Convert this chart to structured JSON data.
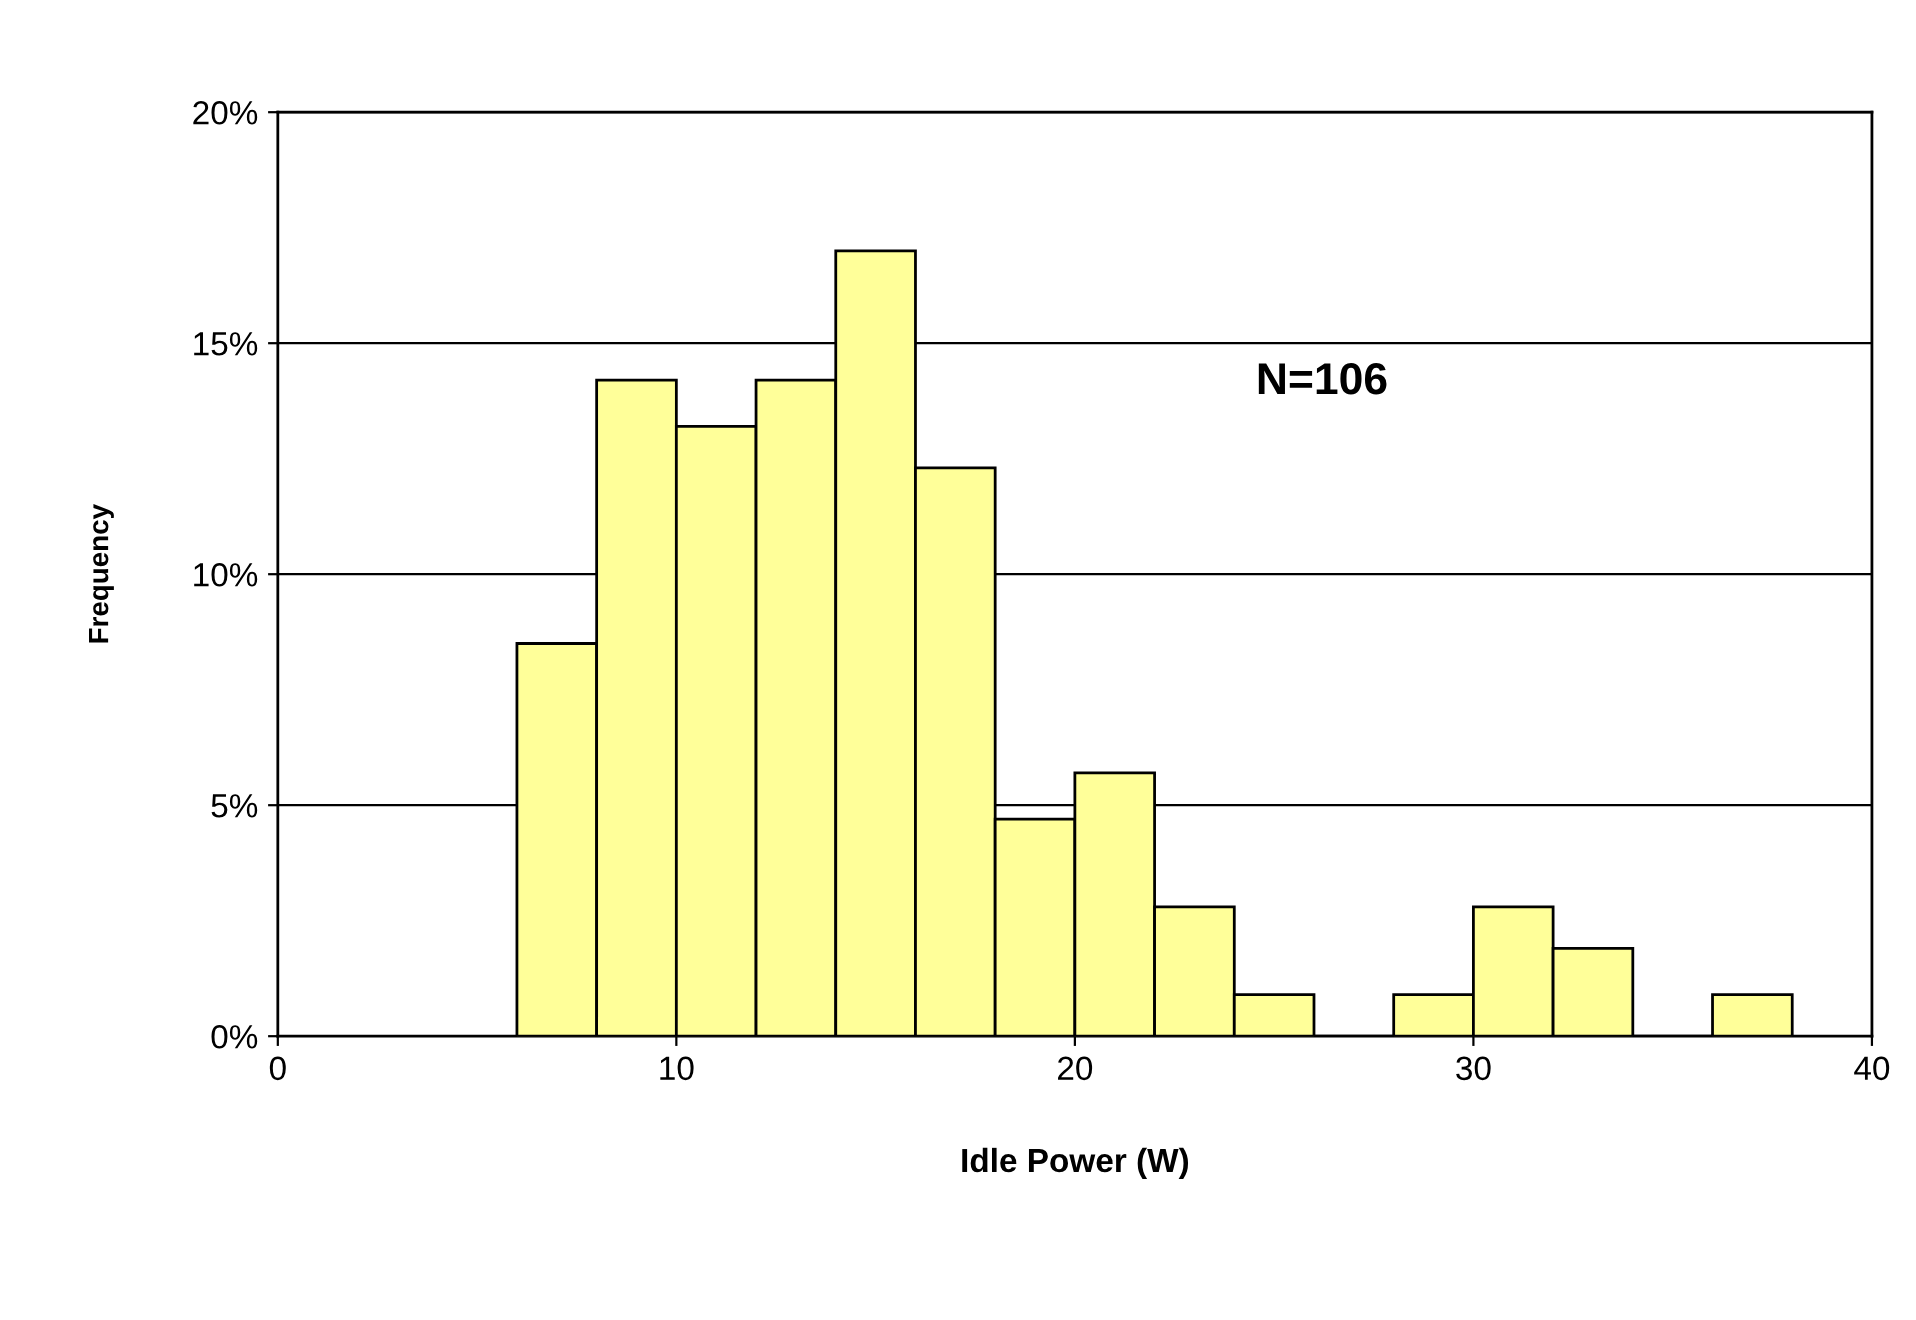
{
  "chart_data": {
    "type": "histogram",
    "xlabel": "Idle Power (W)",
    "ylabel": "Frequency",
    "bins": [
      6,
      8,
      10,
      12,
      14,
      16,
      18,
      20,
      22,
      24,
      26,
      28,
      30,
      32,
      34,
      36,
      38
    ],
    "values": [
      8.5,
      14.2,
      13.2,
      14.2,
      17.0,
      12.3,
      4.7,
      5.7,
      2.8,
      0.9,
      0,
      0.9,
      2.8,
      1.9,
      0,
      0.9
    ],
    "color": "#ffff99",
    "xlim": [
      0,
      40
    ],
    "xticks": [
      0,
      10,
      20,
      30,
      40
    ],
    "ylim": [
      0,
      20
    ],
    "yticks": [
      {
        "value": 0,
        "label": "0%"
      },
      {
        "value": 5,
        "label": "5%"
      },
      {
        "value": 10,
        "label": "10%"
      },
      {
        "value": 15,
        "label": "15%"
      },
      {
        "value": 20,
        "label": "20%"
      }
    ],
    "grid": "y",
    "legend": false,
    "annotations": [
      "N=106"
    ]
  }
}
